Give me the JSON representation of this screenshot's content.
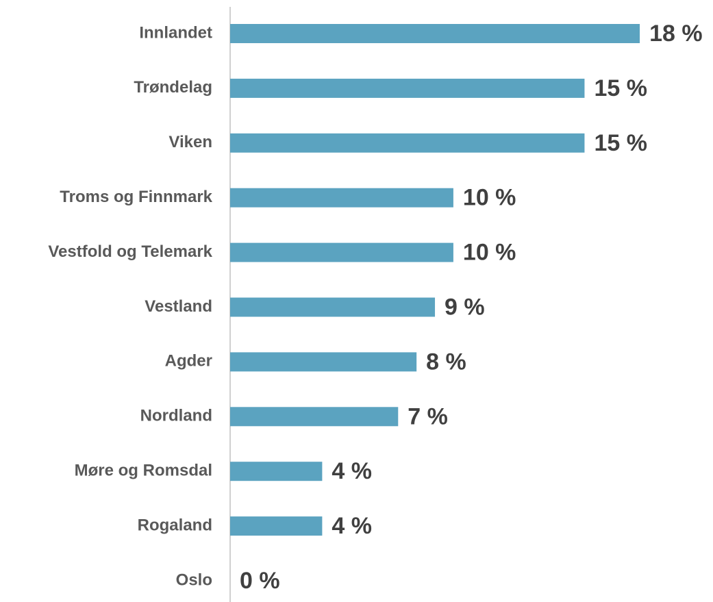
{
  "chart_data": {
    "type": "barh",
    "categories": [
      "Innlandet",
      "Trøndelag",
      "Viken",
      "Troms og Finnmark",
      "Vestfold og Telemark",
      "Vestland",
      "Agder",
      "Nordland",
      "Møre og Romsdal",
      "Rogaland",
      "Oslo"
    ],
    "values": [
      17.8,
      15.4,
      15.4,
      9.7,
      9.7,
      8.9,
      8.1,
      7.3,
      4.0,
      4.0,
      0
    ],
    "value_labels": [
      "18 %",
      "15 %",
      "15 %",
      "10 %",
      "10 %",
      "9 %",
      "8 %",
      "7 %",
      "4 %",
      "4 %",
      "0 %"
    ],
    "color": "#5ba3c0",
    "xlim": [
      0,
      20
    ]
  }
}
